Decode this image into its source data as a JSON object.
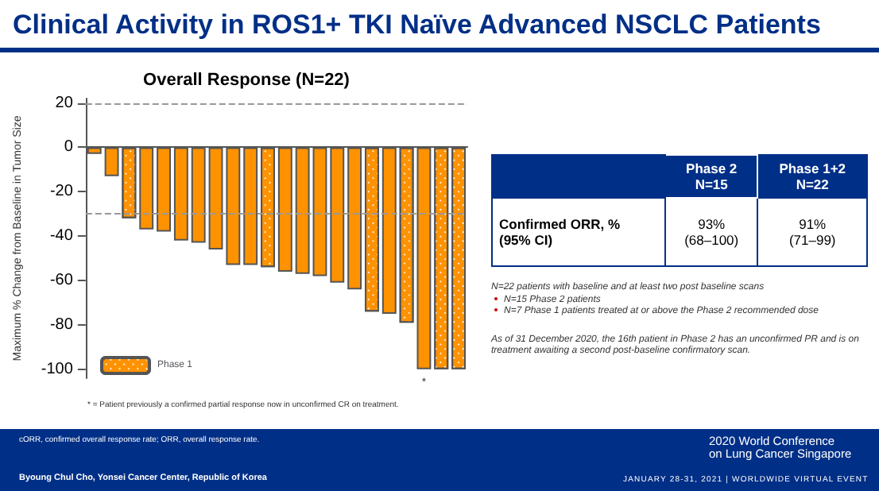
{
  "chart_data": [
    {
      "type": "bar",
      "title": "Clinical Activity in ROS1+ TKI Naïve Advanced NSCLC Patients",
      "subtitle": "Overall Response (N=22)",
      "ylabel": "Maximum % Change from Baseline in Tumor Size",
      "categories": [
        null,
        null,
        null,
        null,
        null,
        null,
        null,
        null,
        null,
        null,
        null,
        null,
        null,
        null,
        null,
        null,
        null,
        null,
        null,
        null,
        null,
        null
      ],
      "series": [
        {
          "color": "#ff9200",
          "values": [
            -3,
            -13,
            null,
            -37,
            -38,
            -42,
            -43,
            -46,
            -53,
            -53,
            null,
            -56,
            -57,
            -58,
            -61,
            -64,
            null,
            -75,
            null,
            -100,
            null,
            null
          ],
          "value_labels": [
            null,
            null,
            null,
            null,
            null,
            null,
            null,
            null,
            null,
            null,
            null,
            null,
            null,
            null,
            null,
            null,
            null,
            null,
            null,
            "*",
            null,
            null
          ]
        },
        {
          "name": "Phase 1",
          "color": "#ff9200",
          "values": [
            null,
            null,
            -32,
            null,
            null,
            null,
            null,
            null,
            null,
            null,
            -54,
            null,
            null,
            null,
            null,
            null,
            -74,
            null,
            -79,
            null,
            -100,
            -100
          ]
        }
      ],
      "ylim": [
        -104,
        22
      ],
      "yticks": [
        -100,
        -80,
        -60,
        -40,
        -20,
        0,
        20
      ],
      "grid": false,
      "legend": "bottom left",
      "ref_lines": [
        {
          "axis": "y",
          "value": 20,
          "color": "#999999",
          "line_style": "dashed"
        },
        {
          "axis": "y",
          "value": -30,
          "color": "#999999",
          "line_style": "dashed"
        }
      ],
      "annotations": [
        "* = Patient previously a confirmed partial response now in unconfirmed CR on treatment."
      ]
    },
    {
      "type": "other",
      "annotations": [
        "Phase 2\nN=15",
        "Phase 1+2\nN=22",
        "Confirmed ORR, %\n(95% CI)",
        "93%\n(68–100)",
        "91%\n(71–99)",
        "N=22 patients with baseline and at least two post baseline scans",
        "N=15 Phase 2 patients",
        "N=7 Phase 1 patients treated at or above the Phase 2 recommended dose",
        "As of 31 December 2020, the 16th patient in Phase 2 has an unconfirmed PR and is on treatment awaiting a second post-baseline confirmatory scan.",
        "cORR, confirmed overall response rate; ORR, overall response rate.",
        "Byoung Chul Cho, Yonsei Cancer Center, Republic of Korea",
        "2020 World Conference\non Lung Cancer Singapore",
        "JANUARY 28-31, 2021 | WORLDWIDE VIRTUAL EVENT"
      ]
    }
  ]
}
